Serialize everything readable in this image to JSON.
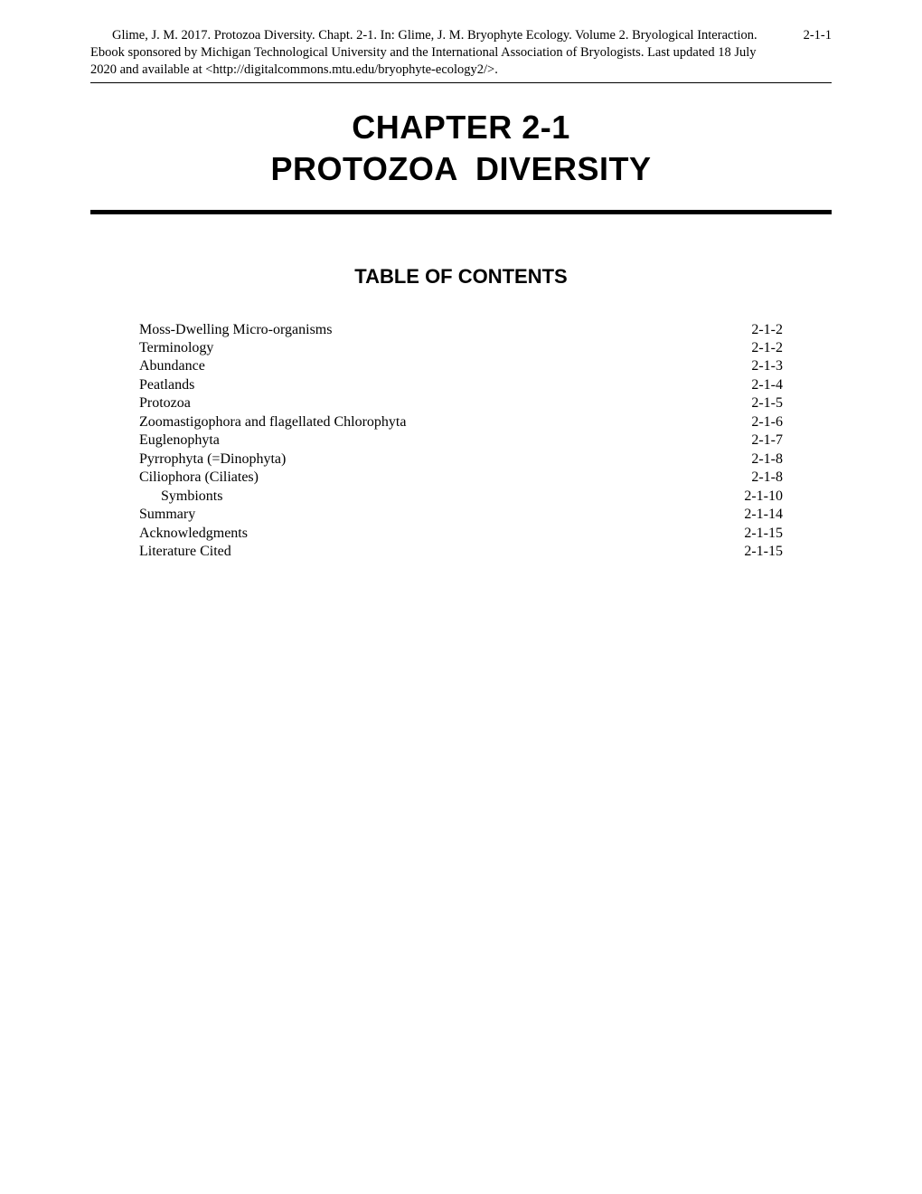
{
  "header": {
    "citation": "Glime, J. M.  2017.  Protozoa Diversity.  Chapt. 2-1.  In:  Glime, J. M.  Bryophyte Ecology.  Volume 2.  Bryological Interaction.  Ebook sponsored by Michigan Technological University and the International Association of Bryologists.  Last updated 18 July 2020 and available at <http://digitalcommons.mtu.edu/bryophyte-ecology2/>.",
    "page_number": "2-1-1"
  },
  "chapter": {
    "line1": "CHAPTER 2-1",
    "line2": "PROTOZOA  DIVERSITY"
  },
  "toc": {
    "heading": "TABLE OF CONTENTS",
    "entries": [
      {
        "label": "Moss-Dwelling Micro-organisms",
        "page": "2-1-2",
        "indent": 0
      },
      {
        "label": "Terminology",
        "page": "2-1-2",
        "indent": 0
      },
      {
        "label": "Abundance",
        "page": "2-1-3",
        "indent": 0
      },
      {
        "label": "Peatlands",
        "page": "2-1-4",
        "indent": 0
      },
      {
        "label": "Protozoa",
        "page": "2-1-5",
        "indent": 0
      },
      {
        "label": "Zoomastigophora and flagellated Chlorophyta",
        "page": "2-1-6",
        "indent": 0
      },
      {
        "label": "Euglenophyta",
        "page": "2-1-7",
        "indent": 0
      },
      {
        "label": "Pyrrophyta (=Dinophyta)",
        "page": "2-1-8",
        "indent": 0
      },
      {
        "label": "Ciliophora (Ciliates)",
        "page": "2-1-8",
        "indent": 0
      },
      {
        "label": "Symbionts",
        "page": "2-1-10",
        "indent": 1
      },
      {
        "label": "Summary",
        "page": "2-1-14",
        "indent": 0
      },
      {
        "label": "Acknowledgments",
        "page": "2-1-15",
        "indent": 0
      },
      {
        "label": "Literature Cited",
        "page": "2-1-15",
        "indent": 0
      }
    ]
  }
}
